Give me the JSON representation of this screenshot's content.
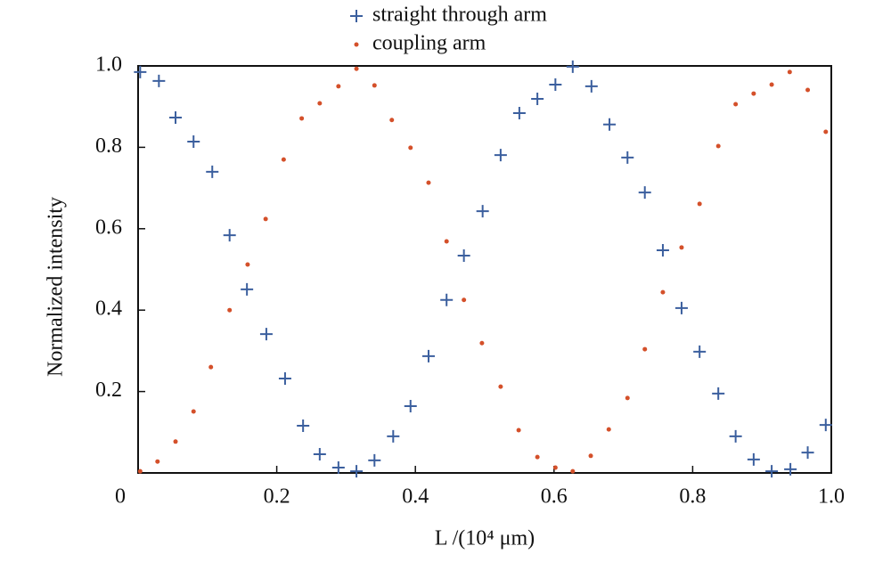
{
  "chart_data": {
    "type": "scatter",
    "xlabel": "L /(10⁴ μm)",
    "ylabel": "Normalized intensity",
    "xlim": [
      0,
      1
    ],
    "ylim": [
      0,
      1
    ],
    "xticks": [
      0,
      0.2,
      0.4,
      0.6,
      0.8,
      {
        "value": 1,
        "label": "1.0"
      }
    ],
    "yticks": [
      0.2,
      0.4,
      0.6,
      0.8,
      {
        "value": 1,
        "label": "1.0"
      }
    ],
    "legend": "top",
    "series": [
      {
        "name": "straight through arm",
        "color": "#3b5f9e",
        "marker": "plus",
        "x": [
          0.003,
          0.03,
          0.054,
          0.08,
          0.107,
          0.132,
          0.157,
          0.185,
          0.212,
          0.238,
          0.262,
          0.289,
          0.315,
          0.341,
          0.368,
          0.393,
          0.419,
          0.445,
          0.47,
          0.497,
          0.523,
          0.55,
          0.576,
          0.602,
          0.627,
          0.654,
          0.68,
          0.706,
          0.731,
          0.757,
          0.784,
          0.81,
          0.837,
          0.862,
          0.888,
          0.914,
          0.941,
          0.966,
          0.992
        ],
        "values": [
          0.985,
          0.963,
          0.873,
          0.814,
          0.74,
          0.584,
          0.451,
          0.341,
          0.232,
          0.116,
          0.046,
          0.013,
          0.004,
          0.031,
          0.09,
          0.164,
          0.287,
          0.425,
          0.534,
          0.643,
          0.781,
          0.884,
          0.919,
          0.954,
          0.998,
          0.95,
          0.856,
          0.775,
          0.689,
          0.547,
          0.405,
          0.298,
          0.195,
          0.09,
          0.033,
          0.004,
          0.009,
          0.05,
          0.118
        ]
      },
      {
        "name": "coupling arm",
        "color": "#d4502a",
        "marker": "dot",
        "x": [
          0.003,
          0.028,
          0.054,
          0.08,
          0.105,
          0.132,
          0.158,
          0.184,
          0.21,
          0.236,
          0.262,
          0.289,
          0.315,
          0.341,
          0.366,
          0.393,
          0.419,
          0.445,
          0.47,
          0.496,
          0.523,
          0.549,
          0.576,
          0.602,
          0.627,
          0.653,
          0.679,
          0.706,
          0.731,
          0.757,
          0.784,
          0.81,
          0.837,
          0.862,
          0.888,
          0.914,
          0.94,
          0.966,
          0.992
        ],
        "values": [
          0.004,
          0.028,
          0.077,
          0.151,
          0.26,
          0.4,
          0.512,
          0.624,
          0.77,
          0.871,
          0.908,
          0.95,
          0.993,
          0.952,
          0.867,
          0.799,
          0.713,
          0.569,
          0.425,
          0.319,
          0.212,
          0.105,
          0.039,
          0.013,
          0.004,
          0.042,
          0.107,
          0.184,
          0.304,
          0.444,
          0.554,
          0.661,
          0.803,
          0.906,
          0.932,
          0.954,
          0.985,
          0.941,
          0.838
        ]
      }
    ]
  }
}
